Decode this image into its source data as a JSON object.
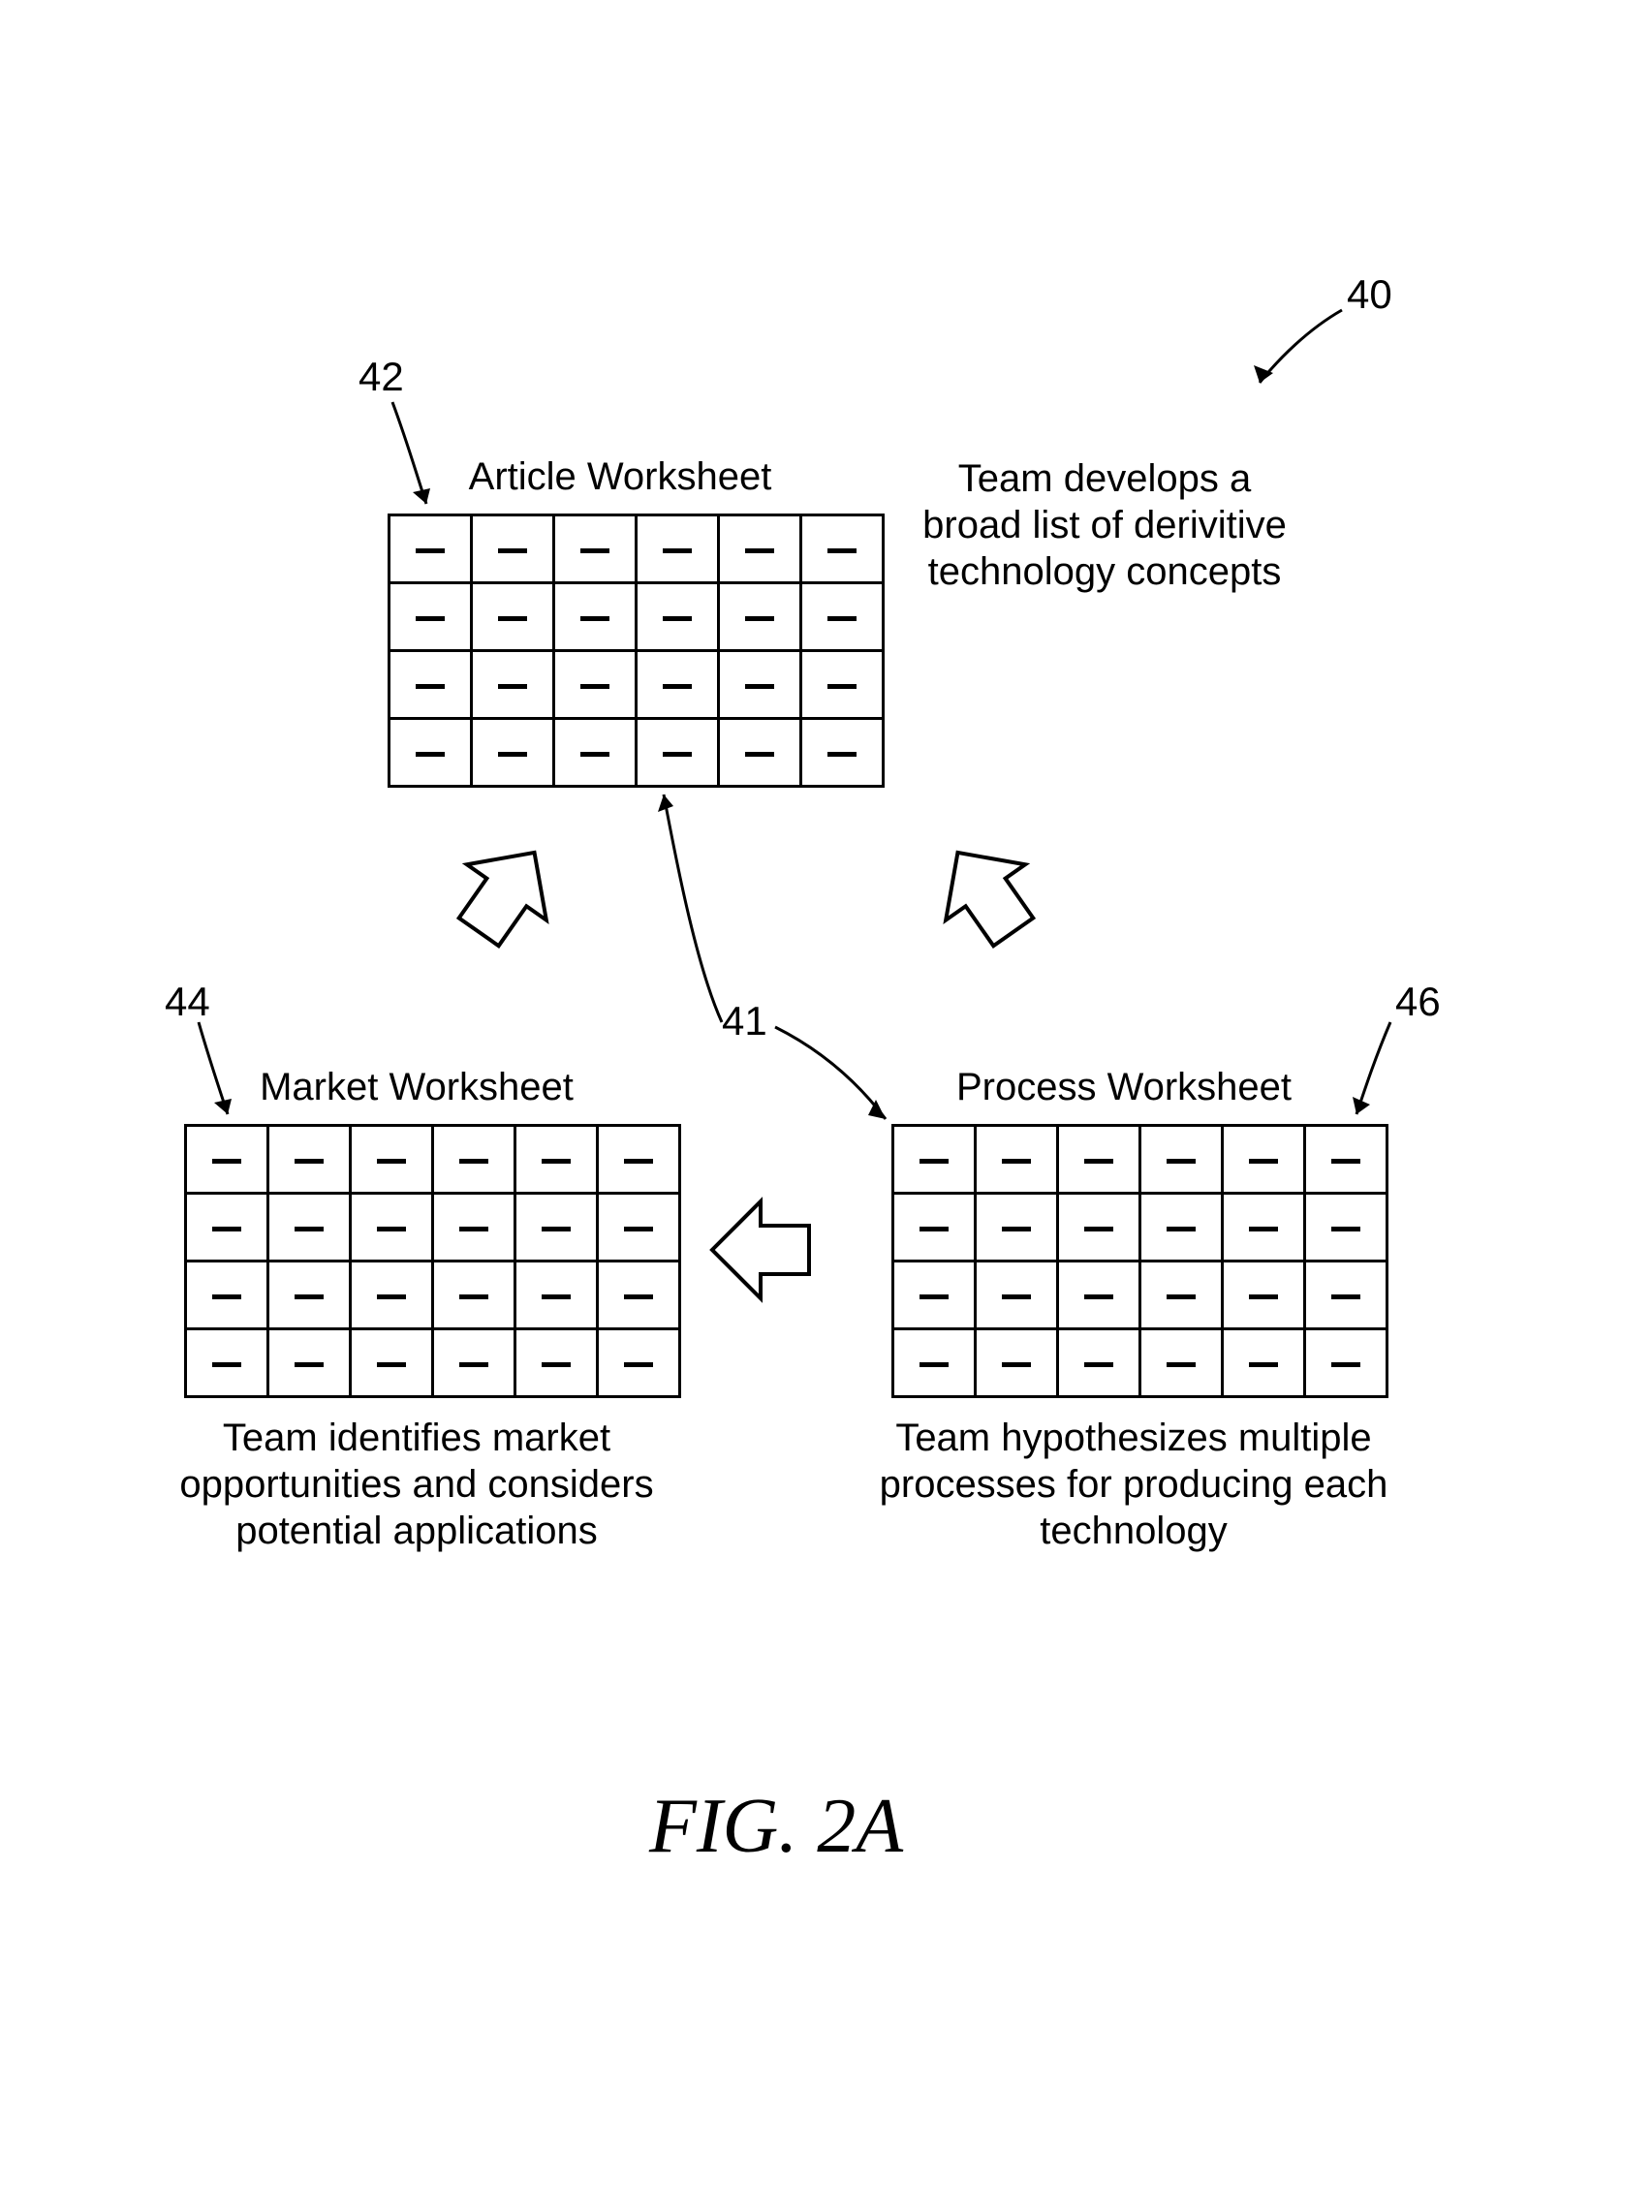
{
  "figure_label": "FIG. 2A",
  "refs": {
    "r40": "40",
    "r41": "41",
    "r42": "42",
    "r44": "44",
    "r46": "46"
  },
  "worksheets": {
    "article": {
      "title": "Article Worksheet",
      "caption_l1": "Team develops a",
      "caption_l2": "broad list of derivitive",
      "caption_l3": "technology concepts",
      "rows": 4,
      "cols": 6,
      "cell_mark": "–"
    },
    "market": {
      "title": "Market Worksheet",
      "caption_l1": "Team identifies market",
      "caption_l2": "opportunities and considers",
      "caption_l3": "potential applications",
      "rows": 4,
      "cols": 6,
      "cell_mark": "–"
    },
    "process": {
      "title": "Process Worksheet",
      "caption_l1": "Team hypothesizes multiple",
      "caption_l2": "processes for producing each",
      "caption_l3": "technology",
      "rows": 4,
      "cols": 6,
      "cell_mark": "–"
    }
  },
  "style": {
    "stroke": "#000000",
    "stroke_width": 4,
    "arrow_fill": "#ffffff"
  }
}
